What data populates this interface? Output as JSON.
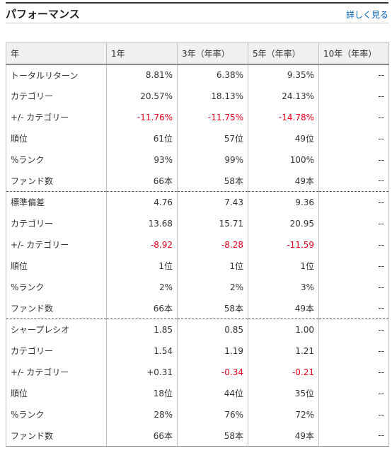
{
  "header": {
    "title": "パフォーマンス",
    "more_link": "詳しく見る"
  },
  "table": {
    "columns": [
      "年",
      "1年",
      "3年（年率）",
      "5年（年率）",
      "10年（年率）"
    ],
    "sections": [
      {
        "rows": [
          {
            "label": "トータルリターン",
            "values": [
              "8.81%",
              "6.38%",
              "9.35%",
              "--"
            ],
            "neg": [
              false,
              false,
              false,
              false
            ]
          },
          {
            "label": "カテゴリー",
            "values": [
              "20.57%",
              "18.13%",
              "24.13%",
              "--"
            ],
            "neg": [
              false,
              false,
              false,
              false
            ]
          },
          {
            "label": "+/- カテゴリー",
            "values": [
              "-11.76%",
              "-11.75%",
              "-14.78%",
              "--"
            ],
            "neg": [
              true,
              true,
              true,
              false
            ]
          },
          {
            "label": "順位",
            "values": [
              "61位",
              "57位",
              "49位",
              "--"
            ],
            "neg": [
              false,
              false,
              false,
              false
            ]
          },
          {
            "label": "%ランク",
            "values": [
              "93%",
              "99%",
              "100%",
              "--"
            ],
            "neg": [
              false,
              false,
              false,
              false
            ]
          },
          {
            "label": "ファンド数",
            "values": [
              "66本",
              "58本",
              "49本",
              "--"
            ],
            "neg": [
              false,
              false,
              false,
              false
            ]
          }
        ]
      },
      {
        "rows": [
          {
            "label": "標準偏差",
            "values": [
              "4.76",
              "7.43",
              "9.36",
              "--"
            ],
            "neg": [
              false,
              false,
              false,
              false
            ]
          },
          {
            "label": "カテゴリー",
            "values": [
              "13.68",
              "15.71",
              "20.95",
              "--"
            ],
            "neg": [
              false,
              false,
              false,
              false
            ]
          },
          {
            "label": "+/- カテゴリー",
            "values": [
              "-8.92",
              "-8.28",
              "-11.59",
              "--"
            ],
            "neg": [
              true,
              true,
              true,
              false
            ]
          },
          {
            "label": "順位",
            "values": [
              "1位",
              "1位",
              "1位",
              "--"
            ],
            "neg": [
              false,
              false,
              false,
              false
            ]
          },
          {
            "label": "%ランク",
            "values": [
              "2%",
              "2%",
              "3%",
              "--"
            ],
            "neg": [
              false,
              false,
              false,
              false
            ]
          },
          {
            "label": "ファンド数",
            "values": [
              "66本",
              "58本",
              "49本",
              "--"
            ],
            "neg": [
              false,
              false,
              false,
              false
            ]
          }
        ]
      },
      {
        "rows": [
          {
            "label": "シャープレシオ",
            "values": [
              "1.85",
              "0.85",
              "1.00",
              "--"
            ],
            "neg": [
              false,
              false,
              false,
              false
            ]
          },
          {
            "label": "カテゴリー",
            "values": [
              "1.54",
              "1.19",
              "1.21",
              "--"
            ],
            "neg": [
              false,
              false,
              false,
              false
            ]
          },
          {
            "label": "+/- カテゴリー",
            "values": [
              "+0.31",
              "-0.34",
              "-0.21",
              "--"
            ],
            "neg": [
              false,
              true,
              true,
              false
            ]
          },
          {
            "label": "順位",
            "values": [
              "18位",
              "44位",
              "35位",
              "--"
            ],
            "neg": [
              false,
              false,
              false,
              false
            ]
          },
          {
            "label": "%ランク",
            "values": [
              "28%",
              "76%",
              "72%",
              "--"
            ],
            "neg": [
              false,
              false,
              false,
              false
            ]
          },
          {
            "label": "ファンド数",
            "values": [
              "66本",
              "58本",
              "49本",
              "--"
            ],
            "neg": [
              false,
              false,
              false,
              false
            ]
          }
        ]
      }
    ],
    "colors": {
      "negative": "#e8001c",
      "link": "#0060b6",
      "header_bg": "#f0f0f0"
    }
  }
}
